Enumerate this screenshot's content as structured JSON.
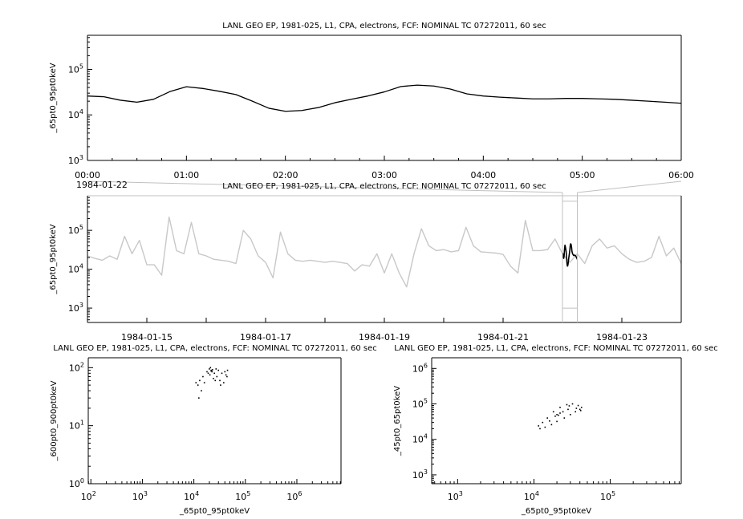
{
  "colors": {
    "axis": "#000000",
    "context_series": "#c8c8c8",
    "focus_series": "#000000",
    "connector": "#c0c0c0"
  },
  "chart_data": [
    {
      "id": "top",
      "type": "line",
      "title": "LANL GEO EP, 1981-025, L1, CPA, electrons, FCF: NOMINAL TC 07272011, 60 sec",
      "ylabel": "_65pt0_95pt0keV",
      "xlabel": "",
      "date_label": "1984-01-22",
      "yscale": "log",
      "ylim": [
        1000,
        560000
      ],
      "xlim": [
        "1984-01-22T00:00",
        "1984-01-22T06:00"
      ],
      "x_tick_labels": [
        "00:00",
        "01:00",
        "02:00",
        "03:00",
        "04:00",
        "05:00",
        "06:00"
      ],
      "y_ticks": [
        1000,
        10000,
        100000
      ],
      "x_step_minutes": 10,
      "values": [
        26000,
        25000,
        21000,
        19000,
        22000,
        32500,
        41500,
        38000,
        33000,
        28000,
        20000,
        14000,
        12000,
        12500,
        14500,
        18500,
        22000,
        26000,
        32000,
        42000,
        45000,
        43000,
        37000,
        29000,
        26000,
        24500,
        23500,
        22500,
        22500,
        23000,
        23000,
        22500,
        22000,
        21000,
        20000,
        19000,
        18000
      ]
    },
    {
      "id": "middle",
      "type": "line",
      "title": "LANL GEO EP, 1981-025, L1, CPA, electrons, FCF: NOMINAL TC 07272011, 60 sec",
      "ylabel": "_65pt0_95pt0keV",
      "xlabel": "",
      "yscale": "log",
      "ylim": [
        427,
        776000
      ],
      "xlim": [
        "1984-01-14T00:00",
        "1984-01-24T00:00"
      ],
      "x_tick_labels": [
        "1984-01-15",
        "1984-01-17",
        "1984-01-19",
        "1984-01-21",
        "1984-01-23"
      ],
      "y_ticks": [
        1000,
        10000,
        100000
      ],
      "x_step_hours": 3,
      "highlight_range": [
        "1984-01-22T00:00",
        "1984-01-22T06:00"
      ],
      "values": [
        22000,
        19000,
        17000,
        22000,
        18000,
        70000,
        25000,
        55000,
        13000,
        13000,
        7000,
        220000,
        30000,
        25000,
        160000,
        25000,
        22000,
        18000,
        17000,
        16000,
        14000,
        100000,
        60000,
        22000,
        15000,
        6000,
        90000,
        25000,
        17000,
        16000,
        17000,
        16000,
        15000,
        16000,
        15000,
        14000,
        9000,
        13000,
        12000,
        25000,
        8000,
        25000,
        8000,
        3500,
        25000,
        110000,
        40000,
        30000,
        32000,
        28000,
        30000,
        120000,
        40000,
        28000,
        27000,
        26000,
        24000,
        12000,
        8000,
        180000,
        30000,
        30000,
        32000,
        60000,
        25000,
        15000,
        25000,
        14000,
        40000,
        60000,
        35000,
        40000,
        25000,
        18000,
        15000,
        16000,
        20000,
        70000,
        22000,
        35000,
        14000
      ]
    },
    {
      "id": "bottom-left",
      "type": "scatter",
      "title": "LANL GEO EP, 1981-025, L1, CPA, electrons, FCF: NOMINAL TC 07272011, 60 sec",
      "xlabel": "_65pt0_95pt0keV",
      "ylabel": "_600pt0_900pt0keV",
      "xscale": "log",
      "yscale": "log",
      "xlim": [
        89,
        7200000
      ],
      "ylim": [
        1,
        148
      ],
      "x_ticks": [
        100,
        1000,
        10000,
        100000,
        1000000
      ],
      "y_ticks": [
        1,
        10,
        100
      ],
      "points": [
        [
          12000,
          50
        ],
        [
          13000,
          60
        ],
        [
          15000,
          70
        ],
        [
          18000,
          85
        ],
        [
          20000,
          95
        ],
        [
          22000,
          90
        ],
        [
          25000,
          80
        ],
        [
          28000,
          70
        ],
        [
          32000,
          60
        ],
        [
          38000,
          55
        ],
        [
          42000,
          75
        ],
        [
          45000,
          90
        ],
        [
          40000,
          85
        ],
        [
          30000,
          90
        ],
        [
          21000,
          100
        ],
        [
          19000,
          80
        ],
        [
          14000,
          40
        ],
        [
          12500,
          30
        ],
        [
          16000,
          55
        ],
        [
          24000,
          65
        ],
        [
          35000,
          80
        ],
        [
          27000,
          95
        ],
        [
          22500,
          85
        ],
        [
          20500,
          75
        ],
        [
          11000,
          55
        ],
        [
          23000,
          92
        ],
        [
          21500,
          88
        ],
        [
          26000,
          60
        ],
        [
          33000,
          50
        ],
        [
          44000,
          70
        ]
      ]
    },
    {
      "id": "bottom-right",
      "type": "scatter",
      "title": "LANL GEO EP, 1981-025, L1, CPA, electrons, FCF: NOMINAL TC 07272011, 60 sec",
      "xlabel": "_65pt0_95pt0keV",
      "ylabel": "_45pt0_65pt0keV",
      "xscale": "log",
      "yscale": "log",
      "xlim": [
        457,
        851000
      ],
      "ylim": [
        562,
        2000000
      ],
      "x_ticks": [
        1000,
        10000,
        100000
      ],
      "y_ticks": [
        1000,
        10000,
        100000,
        1000000
      ],
      "points": [
        [
          12000,
          20000
        ],
        [
          14000,
          22000
        ],
        [
          17000,
          26000
        ],
        [
          20000,
          32000
        ],
        [
          25000,
          40000
        ],
        [
          30000,
          50000
        ],
        [
          35000,
          60000
        ],
        [
          40000,
          70000
        ],
        [
          42000,
          80000
        ],
        [
          38000,
          90000
        ],
        [
          32000,
          100000
        ],
        [
          27000,
          95000
        ],
        [
          22000,
          80000
        ],
        [
          18000,
          60000
        ],
        [
          15000,
          40000
        ],
        [
          13000,
          30000
        ],
        [
          20000,
          50000
        ],
        [
          21000,
          48000
        ],
        [
          22000,
          55000
        ],
        [
          19000,
          45000
        ],
        [
          24000,
          60000
        ],
        [
          28000,
          70000
        ],
        [
          36000,
          75000
        ],
        [
          11500,
          24000
        ],
        [
          16000,
          33000
        ],
        [
          29000,
          88000
        ],
        [
          41000,
          65000
        ]
      ]
    }
  ]
}
